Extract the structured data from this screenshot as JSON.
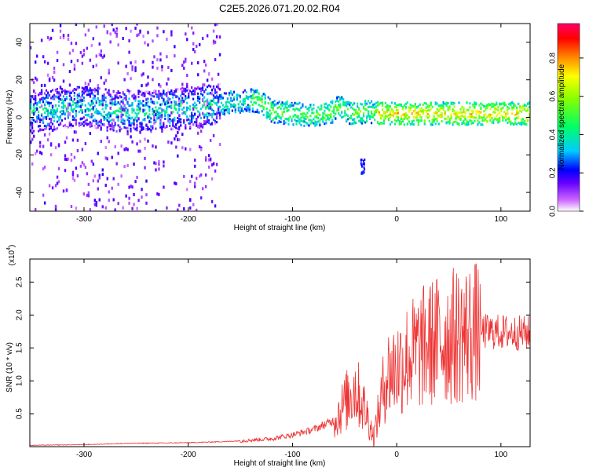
{
  "title": "C2E5.2026.071.20.02.R04",
  "chart_data": [
    {
      "type": "heatmap",
      "xlabel": "Height of straight line (km)",
      "ylabel": "Frequency (Hz)",
      "xlim": [
        -352,
        128
      ],
      "ylim": [
        -50,
        50
      ],
      "xticks": [
        -300,
        -200,
        -100,
        0,
        100
      ],
      "yticks": [
        -40,
        -20,
        0,
        20,
        40
      ],
      "grid": false,
      "colorbar": {
        "label": "Normalized spectral amplitude",
        "range": [
          0.0,
          0.98
        ],
        "ticks": [
          0.0,
          0.2,
          0.4,
          0.6,
          0.8
        ],
        "colors": [
          "#ffffff",
          "#cc55ff",
          "#6600ff",
          "#0000ff",
          "#00ccff",
          "#00ff66",
          "#88ff00",
          "#ffff00",
          "#ff8800",
          "#ff0000",
          "#ff0066"
        ]
      },
      "ridge": [
        {
          "x": -352,
          "y": 3
        },
        {
          "x": -320,
          "y": 5
        },
        {
          "x": -300,
          "y": 6
        },
        {
          "x": -280,
          "y": 4
        },
        {
          "x": -260,
          "y": 3
        },
        {
          "x": -240,
          "y": 3
        },
        {
          "x": -220,
          "y": 4
        },
        {
          "x": -200,
          "y": 5
        },
        {
          "x": -180,
          "y": 6
        },
        {
          "x": -160,
          "y": 8
        },
        {
          "x": -140,
          "y": 9
        },
        {
          "x": -130,
          "y": 8
        },
        {
          "x": -120,
          "y": 3
        },
        {
          "x": -100,
          "y": 2
        },
        {
          "x": -80,
          "y": 1
        },
        {
          "x": -65,
          "y": 2
        },
        {
          "x": -55,
          "y": 6
        },
        {
          "x": -45,
          "y": 2
        },
        {
          "x": -30,
          "y": 3
        },
        {
          "x": -10,
          "y": 2
        },
        {
          "x": 10,
          "y": 2
        },
        {
          "x": 30,
          "y": 2
        },
        {
          "x": 50,
          "y": 2
        },
        {
          "x": 80,
          "y": 2
        },
        {
          "x": 128,
          "y": 2
        }
      ],
      "feature": {
        "x": -33,
        "y": -27
      }
    },
    {
      "type": "line",
      "xlabel": "Height of straight line (km)",
      "ylabel": "SNR (10 * v/v)",
      "yscale_label": "(x10",
      "yscale_exp": "4",
      "yscale_close": ")",
      "xlim": [
        -352,
        128
      ],
      "ylim": [
        0,
        2.85
      ],
      "xticks": [
        -300,
        -200,
        -100,
        0,
        100
      ],
      "yticks": [
        0.5,
        1.0,
        1.5,
        2.0,
        2.5
      ],
      "grid": false,
      "color": "#ee3333",
      "series": [
        {
          "values": [
            {
              "x": -352,
              "y": 0.02
            },
            {
              "x": -300,
              "y": 0.03
            },
            {
              "x": -260,
              "y": 0.05
            },
            {
              "x": -200,
              "y": 0.06
            },
            {
              "x": -160,
              "y": 0.08
            },
            {
              "x": -120,
              "y": 0.12
            },
            {
              "x": -100,
              "y": 0.18
            },
            {
              "x": -80,
              "y": 0.26
            },
            {
              "x": -60,
              "y": 0.4
            },
            {
              "x": -50,
              "y": 0.65
            },
            {
              "x": -40,
              "y": 0.9
            },
            {
              "x": -30,
              "y": 0.55
            },
            {
              "x": -22,
              "y": 0.15
            },
            {
              "x": -15,
              "y": 0.7
            },
            {
              "x": -10,
              "y": 1.1
            },
            {
              "x": 0,
              "y": 1.2
            },
            {
              "x": 10,
              "y": 1.35
            },
            {
              "x": 20,
              "y": 1.45
            },
            {
              "x": 30,
              "y": 1.55
            },
            {
              "x": 45,
              "y": 1.65
            },
            {
              "x": 60,
              "y": 1.7
            },
            {
              "x": 80,
              "y": 1.75
            },
            {
              "x": 100,
              "y": 1.74
            },
            {
              "x": 128,
              "y": 1.72
            }
          ]
        }
      ]
    }
  ]
}
